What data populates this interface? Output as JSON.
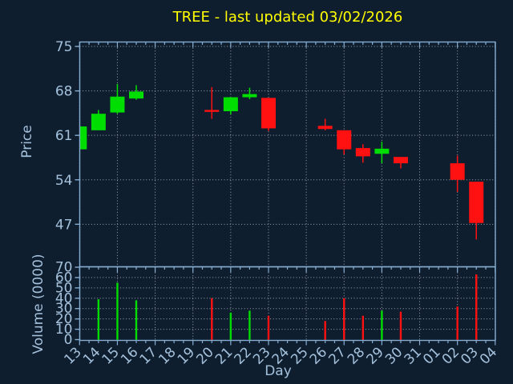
{
  "chart_data": {
    "type": "candlestick+volume",
    "title": "TREE - last updated 03/02/2026",
    "xlabel": "Day",
    "grid": true,
    "legend": "none",
    "price_axis": {
      "label": "Price",
      "ticks": [
        75,
        68,
        61,
        54,
        47
      ],
      "range": [
        40.3,
        75.7
      ]
    },
    "volume_axis": {
      "label": "Volume (0000)",
      "ticks": [
        70,
        60,
        50,
        40,
        30,
        20,
        10,
        0
      ],
      "range": [
        0,
        70.4
      ]
    },
    "x_ticklabels": [
      "13",
      "14",
      "15",
      "16",
      "17",
      "18",
      "19",
      "20",
      "21",
      "22",
      "23",
      "24",
      "25",
      "26",
      "27",
      "28",
      "29",
      "30",
      "31",
      "01",
      "02",
      "03",
      "04"
    ],
    "days": [
      {
        "day": "13",
        "open": 58.8,
        "high": 62.4,
        "low": 58.8,
        "close": 62.4,
        "volume": null
      },
      {
        "day": "14",
        "open": 61.8,
        "high": 65.0,
        "low": 61.8,
        "close": 64.4,
        "volume": 39
      },
      {
        "day": "15",
        "open": 64.6,
        "high": 69.1,
        "low": 64.4,
        "close": 67.1,
        "volume": 55
      },
      {
        "day": "16",
        "open": 66.8,
        "high": 68.9,
        "low": 66.6,
        "close": 67.9,
        "volume": 38
      },
      {
        "day": "20",
        "open": 65.0,
        "high": 68.6,
        "low": 63.6,
        "close": 64.7,
        "volume": 40
      },
      {
        "day": "21",
        "open": 64.8,
        "high": 67.0,
        "low": 64.3,
        "close": 67.0,
        "volume": 26
      },
      {
        "day": "22",
        "open": 67.0,
        "high": 68.5,
        "low": 66.7,
        "close": 67.5,
        "volume": 28
      },
      {
        "day": "23",
        "open": 66.9,
        "high": 66.9,
        "low": 61.7,
        "close": 62.1,
        "volume": 23
      },
      {
        "day": "26",
        "open": 62.5,
        "high": 63.6,
        "low": 61.8,
        "close": 62.0,
        "volume": 18
      },
      {
        "day": "27",
        "open": 61.8,
        "high": 61.8,
        "low": 58.0,
        "close": 58.8,
        "volume": 40
      },
      {
        "day": "28",
        "open": 59.0,
        "high": 59.6,
        "low": 56.7,
        "close": 57.7,
        "volume": 23
      },
      {
        "day": "29",
        "open": 58.1,
        "high": 60.0,
        "low": 56.6,
        "close": 58.9,
        "volume": 28
      },
      {
        "day": "30",
        "open": 57.6,
        "high": 57.6,
        "low": 55.8,
        "close": 56.6,
        "volume": 27
      },
      {
        "day": "02",
        "open": 56.6,
        "high": 57.8,
        "low": 52.1,
        "close": 54.0,
        "volume": 32
      },
      {
        "day": "03",
        "open": 53.7,
        "high": 53.7,
        "low": 44.6,
        "close": 47.2,
        "volume": 63
      }
    ],
    "colors": {
      "up": "#00dd00",
      "down": "#ff1111",
      "background": "#0f1e2e",
      "axis_frame": "#85add2",
      "tick_text": "#a4c1dc",
      "grid": "#b6bcc4",
      "title": "#ffff00"
    }
  }
}
